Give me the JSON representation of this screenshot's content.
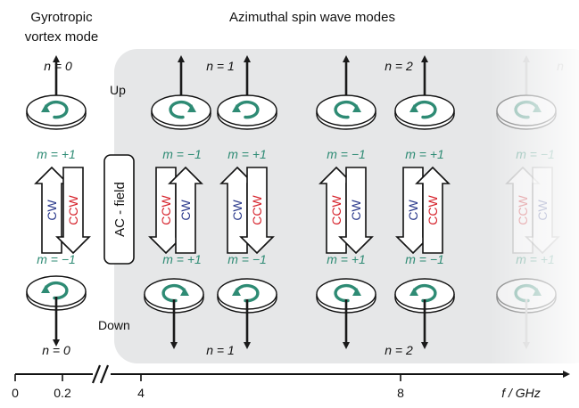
{
  "headers": {
    "gyro_line1": "Gyrotropic",
    "gyro_line2": "vortex mode",
    "azimuthal": "Azimuthal spin wave modes"
  },
  "labels": {
    "up": "Up",
    "down": "Down",
    "ac_field": "AC - field",
    "cw": "CW",
    "ccw": "CCW"
  },
  "n_labels": {
    "gyro_top": "n = 0",
    "gyro_bottom": "n = 0",
    "az1_top": "n = 1",
    "az1_bottom": "n = 1",
    "az2_top": "n = 2",
    "az2_bottom": "n = 2",
    "partial_top": "n"
  },
  "m_labels": {
    "top": [
      "m = +1",
      "m = −1",
      "m = +1",
      "m = −1",
      "m = +1",
      "m = −1"
    ],
    "bottom": [
      "m = −1",
      "m = +1",
      "m = −1",
      "m = +1",
      "m = −1",
      "m = +1"
    ]
  },
  "pair_labels": {
    "gyro": [
      "CW",
      "CCW"
    ],
    "az_n1_left": [
      "CCW",
      "CW"
    ],
    "az_n1_right": [
      "CW",
      "CCW"
    ],
    "az_n2_left": [
      "CCW",
      "CW"
    ],
    "az_n2_right": [
      "CW",
      "CCW"
    ],
    "partial": [
      "CCW",
      "CW"
    ]
  },
  "axis": {
    "ticks": [
      "0",
      "0.2",
      "4",
      "8"
    ],
    "label": "f / GHz"
  },
  "colors": {
    "teal": "#2e8b74",
    "cw_blue": "#2b3a8c",
    "ccw_red": "#d6232c",
    "panel": "#e6e7e8",
    "arrow": "#1a1a1a"
  }
}
